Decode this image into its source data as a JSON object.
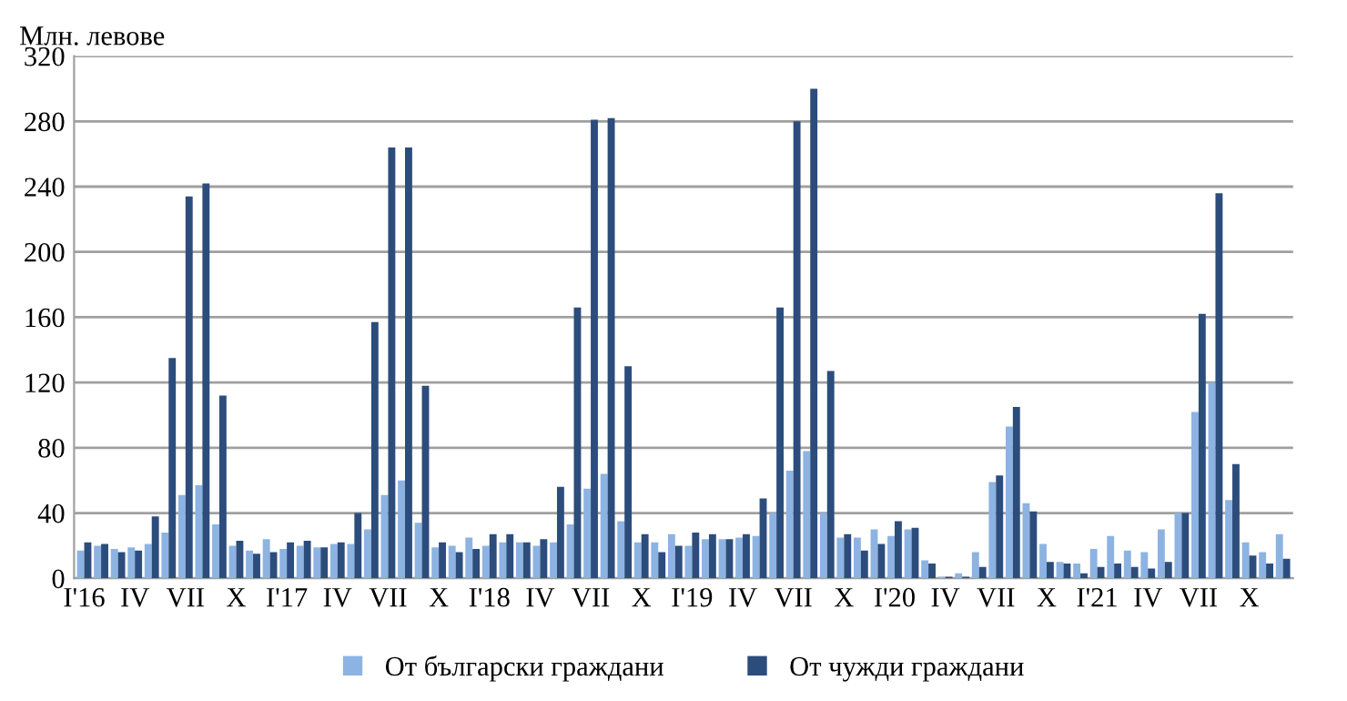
{
  "chart_data": {
    "type": "bar",
    "ylabel": "Млн. левове",
    "categories": [
      "I'16",
      null,
      null,
      "IV",
      null,
      null,
      "VII",
      null,
      null,
      "X",
      null,
      null,
      "I'17",
      null,
      null,
      "IV",
      null,
      null,
      "VII",
      null,
      null,
      "X",
      null,
      null,
      "I'18",
      null,
      null,
      "IV",
      null,
      null,
      "VII",
      null,
      null,
      "X",
      null,
      null,
      "I'19",
      null,
      null,
      "IV",
      null,
      null,
      "VII",
      null,
      null,
      "X",
      null,
      null,
      "I'20",
      null,
      null,
      "IV",
      null,
      null,
      "VII",
      null,
      null,
      "X",
      null,
      null,
      "I'21",
      null,
      null,
      "IV",
      null,
      null,
      "VII",
      null,
      null,
      "X",
      null,
      null
    ],
    "series": [
      {
        "name": "От български граждани",
        "color": "#8db3e2",
        "values": [
          17,
          20,
          18,
          19,
          21,
          28,
          51,
          57,
          33,
          20,
          17,
          24,
          18,
          20,
          19,
          21,
          21,
          30,
          51,
          60,
          34,
          19,
          20,
          25,
          20,
          22,
          22,
          20,
          22,
          33,
          55,
          64,
          35,
          22,
          22,
          27,
          20,
          24,
          24,
          25,
          26,
          40,
          66,
          78,
          40,
          25,
          25,
          30,
          26,
          30,
          11,
          1,
          3,
          16,
          59,
          93,
          46,
          21,
          10,
          9,
          18,
          26,
          17,
          16,
          30,
          40,
          102,
          120,
          48,
          22,
          16,
          27
        ]
      },
      {
        "name": "От чужди граждани",
        "color": "#2c4d7c",
        "values": [
          22,
          21,
          16,
          17,
          38,
          135,
          234,
          242,
          112,
          23,
          15,
          16,
          22,
          23,
          19,
          22,
          40,
          157,
          264,
          264,
          118,
          22,
          16,
          18,
          27,
          27,
          22,
          24,
          56,
          166,
          281,
          282,
          130,
          27,
          16,
          20,
          28,
          27,
          24,
          27,
          49,
          166,
          280,
          300,
          127,
          27,
          17,
          21,
          35,
          31,
          9,
          1,
          1,
          7,
          63,
          105,
          41,
          10,
          9,
          3,
          7,
          9,
          7,
          6,
          10,
          40,
          162,
          236,
          70,
          14,
          9,
          12
        ]
      }
    ],
    "ylim": [
      0,
      320
    ],
    "yticks": [
      0,
      40,
      80,
      120,
      160,
      200,
      240,
      280,
      320
    ],
    "grid": "y",
    "legend": "bottom"
  }
}
